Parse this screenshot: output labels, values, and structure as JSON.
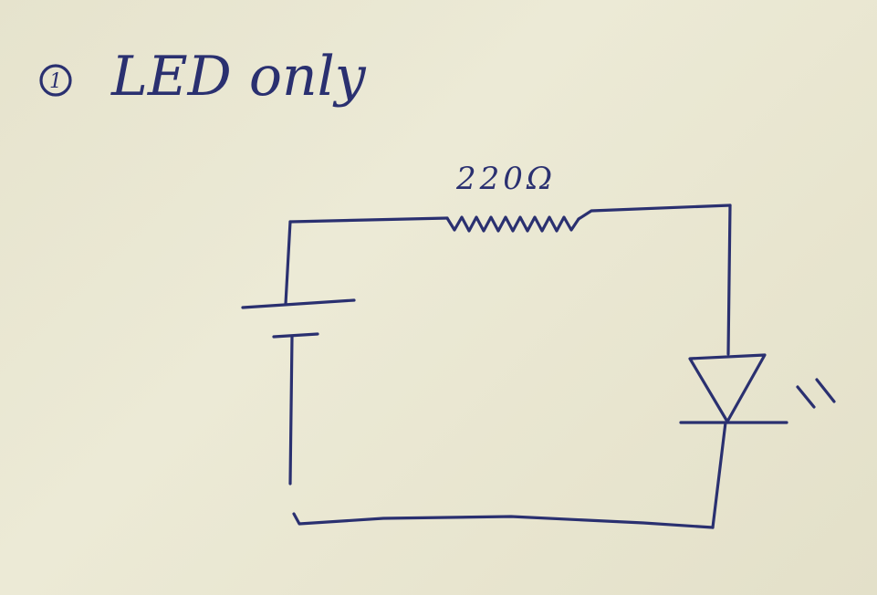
{
  "colors": {
    "ink": "#2a3070",
    "paper": "#e9e6d2"
  },
  "heading": {
    "number": "1",
    "text": "LED only"
  },
  "resistor": {
    "label": "220Ω"
  }
}
